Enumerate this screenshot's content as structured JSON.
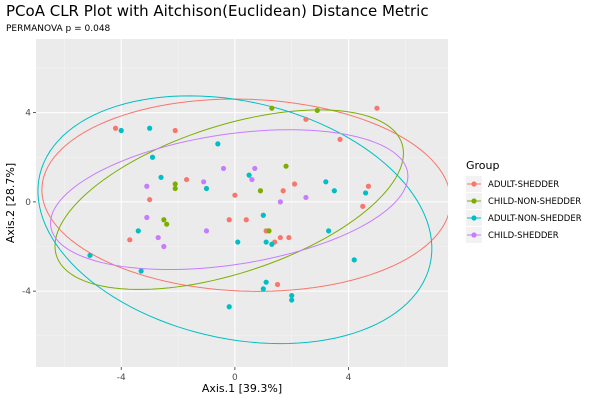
{
  "chart_data": {
    "type": "scatter",
    "title": "PCoA CLR Plot with Aitchison(Euclidean) Distance Metric",
    "subtitle": "PERMANOVA p = 0.048",
    "xlabel": "Axis.1   [39.3%]",
    "ylabel": "Axis.2   [28.7%]",
    "xlim": [
      -7.0,
      7.5
    ],
    "ylim": [
      -7.4,
      7.3
    ],
    "xticks": [
      -4,
      0,
      4
    ],
    "yticks": [
      -4,
      0,
      4
    ],
    "xtick_labels": [
      "-4",
      "0",
      "4"
    ],
    "ytick_labels": [
      "-4",
      "0",
      "4"
    ],
    "grid": true,
    "legend": {
      "title": "Group",
      "position": "right"
    },
    "series": [
      {
        "name": "ADULT-SHEDDER",
        "color": "#F8766D",
        "points": [
          [
            -4.2,
            3.3
          ],
          [
            -2.1,
            3.2
          ],
          [
            -3.0,
            0.1
          ],
          [
            -3.7,
            -1.7
          ],
          [
            -1.7,
            1.0
          ],
          [
            -0.2,
            -0.8
          ],
          [
            0.0,
            0.3
          ],
          [
            0.4,
            -0.8
          ],
          [
            1.1,
            -1.3
          ],
          [
            1.4,
            -1.8
          ],
          [
            1.5,
            -3.7
          ],
          [
            1.6,
            -1.6
          ],
          [
            1.7,
            0.5
          ],
          [
            1.9,
            -1.6
          ],
          [
            2.1,
            0.8
          ],
          [
            2.5,
            3.7
          ],
          [
            3.7,
            2.8
          ],
          [
            4.5,
            -0.2
          ],
          [
            4.7,
            0.7
          ],
          [
            5.0,
            4.2
          ]
        ]
      },
      {
        "name": "CHILD-NON-SHEDDER",
        "color": "#7CAE00",
        "points": [
          [
            -2.5,
            -0.8
          ],
          [
            -2.4,
            -1.0
          ],
          [
            -2.1,
            0.6
          ],
          [
            -2.1,
            0.8
          ],
          [
            0.9,
            0.5
          ],
          [
            1.2,
            -1.3
          ],
          [
            1.3,
            4.2
          ],
          [
            1.8,
            1.6
          ],
          [
            2.9,
            4.1
          ]
        ]
      },
      {
        "name": "ADULT-NON-SHEDDER",
        "color": "#00BFC4",
        "points": [
          [
            -5.1,
            -2.4
          ],
          [
            -4.0,
            3.2
          ],
          [
            -3.3,
            -3.1
          ],
          [
            -3.4,
            -1.3
          ],
          [
            -3.0,
            3.3
          ],
          [
            -2.9,
            2.0
          ],
          [
            -2.6,
            1.1
          ],
          [
            -1.0,
            0.6
          ],
          [
            -0.6,
            2.6
          ],
          [
            -0.2,
            -4.7
          ],
          [
            0.1,
            -1.8
          ],
          [
            0.5,
            1.2
          ],
          [
            1.0,
            -3.9
          ],
          [
            1.0,
            -0.6
          ],
          [
            1.1,
            -3.6
          ],
          [
            1.1,
            -1.8
          ],
          [
            1.3,
            -1.9
          ],
          [
            2.0,
            -4.4
          ],
          [
            2.0,
            -4.2
          ],
          [
            3.2,
            0.9
          ],
          [
            3.3,
            -1.3
          ],
          [
            3.5,
            0.5
          ],
          [
            4.2,
            -2.6
          ],
          [
            4.6,
            0.4
          ]
        ]
      },
      {
        "name": "CHILD-SHEDDER",
        "color": "#C77CFF",
        "points": [
          [
            -3.1,
            0.7
          ],
          [
            -3.1,
            -0.7
          ],
          [
            -2.7,
            -1.6
          ],
          [
            -2.5,
            -2.0
          ],
          [
            -1.1,
            0.9
          ],
          [
            -1.0,
            -1.3
          ],
          [
            -0.4,
            1.5
          ],
          [
            0.6,
            1.0
          ],
          [
            0.7,
            1.5
          ],
          [
            1.6,
            0.0
          ],
          [
            2.5,
            0.2
          ]
        ]
      }
    ],
    "ellipses": [
      {
        "series": "ADULT-SHEDDER",
        "cx": 0.4,
        "cy": 0.3,
        "rx": 7.2,
        "ry": 4.3,
        "angle": -3
      },
      {
        "series": "CHILD-NON-SHEDDER",
        "cx": -0.2,
        "cy": 0.1,
        "rx": 6.6,
        "ry": 3.2,
        "angle": 25
      },
      {
        "series": "ADULT-NON-SHEDDER",
        "cx": 0.0,
        "cy": -0.8,
        "rx": 7.2,
        "ry": 5.2,
        "angle": -23
      },
      {
        "series": "CHILD-SHEDDER",
        "cx": -0.2,
        "cy": 0.1,
        "rx": 6.4,
        "ry": 2.9,
        "angle": 12
      }
    ]
  }
}
